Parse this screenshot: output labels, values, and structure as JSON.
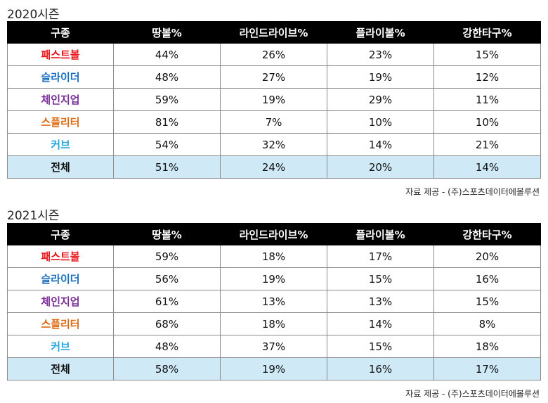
{
  "columns": [
    "구종",
    "땅볼%",
    "라인드라이브%",
    "플라이볼%",
    "강한타구%"
  ],
  "source": "자료 제공 - (주)스포츠데이터에볼루션",
  "pitch_colors": {
    "패스트볼": "#e8131b",
    "슬라이더": "#1a6fc0",
    "체인지업": "#7a2f9a",
    "스플리터": "#e06a12",
    "커브": "#25a8e0",
    "전체": "#111111"
  },
  "seasons": [
    {
      "title": "2020시즌",
      "rows": [
        {
          "pitch": "패스트볼",
          "values": [
            "44%",
            "26%",
            "23%",
            "15%"
          ]
        },
        {
          "pitch": "슬라이더",
          "values": [
            "48%",
            "27%",
            "19%",
            "12%"
          ]
        },
        {
          "pitch": "체인지업",
          "values": [
            "59%",
            "19%",
            "29%",
            "11%"
          ]
        },
        {
          "pitch": "스플리터",
          "values": [
            "81%",
            "7%",
            "10%",
            "10%"
          ]
        },
        {
          "pitch": "커브",
          "values": [
            "54%",
            "32%",
            "14%",
            "21%"
          ]
        },
        {
          "pitch": "전체",
          "values": [
            "51%",
            "24%",
            "20%",
            "14%"
          ]
        }
      ]
    },
    {
      "title": "2021시즌",
      "rows": [
        {
          "pitch": "패스트볼",
          "values": [
            "59%",
            "18%",
            "17%",
            "20%"
          ]
        },
        {
          "pitch": "슬라이더",
          "values": [
            "56%",
            "19%",
            "15%",
            "16%"
          ]
        },
        {
          "pitch": "체인지업",
          "values": [
            "61%",
            "13%",
            "13%",
            "15%"
          ]
        },
        {
          "pitch": "스플리터",
          "values": [
            "68%",
            "18%",
            "14%",
            "8%"
          ]
        },
        {
          "pitch": "커브",
          "values": [
            "48%",
            "37%",
            "15%",
            "18%"
          ]
        },
        {
          "pitch": "전체",
          "values": [
            "58%",
            "19%",
            "16%",
            "17%"
          ]
        }
      ]
    }
  ]
}
